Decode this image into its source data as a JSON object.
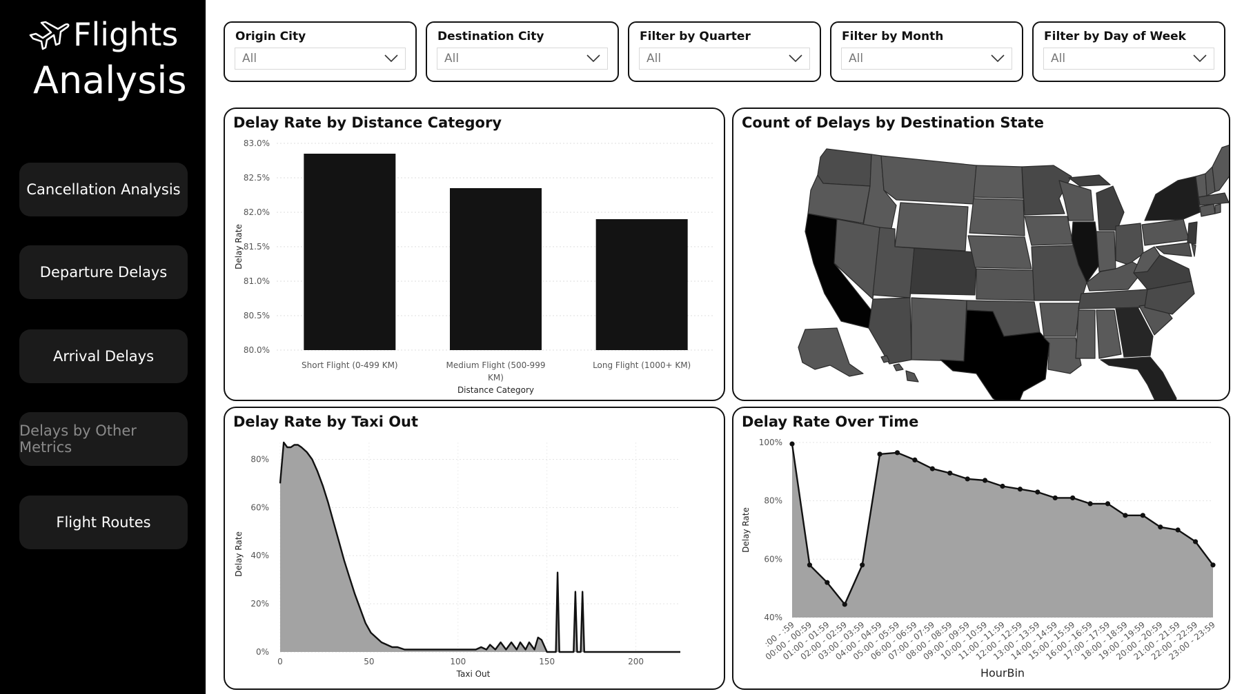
{
  "sidebar": {
    "title_line1": "Flights",
    "title_line2": "Analysis",
    "nav": [
      {
        "label": "Cancellation Analysis"
      },
      {
        "label": "Departure Delays"
      },
      {
        "label": "Arrival Delays"
      },
      {
        "label": "Delays by Other Metrics"
      },
      {
        "label": "Flight Routes"
      }
    ]
  },
  "filters": [
    {
      "title": "Origin City",
      "value": "All"
    },
    {
      "title": "Destination City",
      "value": "All"
    },
    {
      "title": "Filter by Quarter",
      "value": "All"
    },
    {
      "title": "Filter by Month",
      "value": "All"
    },
    {
      "title": "Filter by Day of Week",
      "value": "All"
    }
  ],
  "panels": {
    "distance": {
      "title": "Delay Rate by Distance Category"
    },
    "map": {
      "title": "Count of Delays by Destination State"
    },
    "taxi": {
      "title": "Delay Rate by Taxi Out"
    },
    "time": {
      "title": "Delay Rate Over Time"
    }
  },
  "chart_data": [
    {
      "type": "bar",
      "title": "Delay Rate by Distance Category",
      "xlabel": "Distance Category",
      "ylabel": "Delay Rate",
      "categories": [
        "Short Flight (0-499 KM)",
        "Medium Flight (500-999 KM)",
        "Long Flight (1000+ KM)"
      ],
      "values": [
        82.85,
        82.35,
        81.9
      ],
      "ylim": [
        80.0,
        83.0
      ],
      "yticks": [
        "80.0%",
        "80.5%",
        "81.0%",
        "81.5%",
        "82.0%",
        "82.5%",
        "83.0%"
      ],
      "color": "#131313",
      "grid": true
    },
    {
      "type": "area",
      "title": "Delay Rate by Taxi Out",
      "xlabel": "Taxi Out",
      "ylabel": "Delay Rate",
      "xlim": [
        0,
        225
      ],
      "ylim": [
        0,
        87
      ],
      "xticks": [
        0,
        50,
        100,
        150,
        200
      ],
      "yticks": [
        "0%",
        "20%",
        "40%",
        "60%",
        "80%"
      ],
      "x": [
        0,
        2,
        4,
        6,
        8,
        10,
        12,
        15,
        18,
        21,
        24,
        27,
        30,
        33,
        36,
        39,
        42,
        45,
        48,
        51,
        54,
        57,
        60,
        63,
        66,
        70,
        75,
        80,
        85,
        90,
        95,
        100,
        105,
        110,
        113,
        116,
        118,
        121,
        124,
        127,
        130,
        133,
        135,
        138,
        140,
        143,
        145,
        147,
        150,
        153,
        155,
        156,
        157,
        160,
        165,
        166,
        167,
        169,
        170,
        171,
        175,
        180,
        200,
        225
      ],
      "y": [
        70,
        87,
        85,
        85,
        86,
        86,
        85,
        83,
        80,
        75,
        69,
        62,
        54,
        46,
        38,
        31,
        24,
        18,
        12,
        8,
        6,
        4,
        3,
        2,
        2,
        1,
        1,
        1,
        1,
        1,
        1,
        1,
        1,
        1,
        2,
        1,
        3,
        1,
        4,
        1,
        4,
        1,
        4,
        1,
        4,
        1,
        6,
        5,
        0,
        0,
        0,
        33,
        0,
        0,
        0,
        25,
        0,
        0,
        25,
        0,
        0,
        0,
        0,
        0
      ],
      "fill": "#a3a3a3",
      "line": "#111111"
    },
    {
      "type": "area",
      "title": "Delay Rate Over Time",
      "xlabel": "HourBin",
      "ylabel": "Delay Rate",
      "ylim": [
        40,
        100
      ],
      "yticks": [
        "40%",
        "60%",
        "80%",
        "100%"
      ],
      "categories": [
        ":00 - :59",
        "00:00 - 00:59",
        "01:00 - 01:59",
        "02:00 - 02:59",
        "03:00 - 03:59",
        "04:00 - 04:59",
        "05:00 - 05:59",
        "06:00 - 06:59",
        "07:00 - 07:59",
        "08:00 - 08:59",
        "09:00 - 09:59",
        "10:00 - 10:59",
        "11:00 - 11:59",
        "12:00 - 12:59",
        "13:00 - 13:59",
        "14:00 - 14:59",
        "15:00 - 15:59",
        "16:00 - 16:59",
        "17:00 - 17:59",
        "18:00 - 18:59",
        "19:00 - 19:59",
        "20:00 - 20:59",
        "21:00 - 21:59",
        "22:00 - 22:59",
        "23:00 - 23:59"
      ],
      "values": [
        99.5,
        58,
        52,
        44.5,
        58,
        96,
        96.5,
        94,
        91,
        89.5,
        87.5,
        87,
        85,
        84,
        83,
        81,
        81,
        79,
        79,
        75,
        75,
        71,
        70,
        66,
        58
      ],
      "fill": "#a3a3a3",
      "line": "#111111"
    },
    {
      "type": "map",
      "title": "Count of Delays by Destination State",
      "darkest_states": [
        "CA",
        "TX",
        "FL",
        "GA",
        "IL",
        "NY"
      ],
      "color_scale": [
        "#555555",
        "#000000"
      ]
    }
  ]
}
